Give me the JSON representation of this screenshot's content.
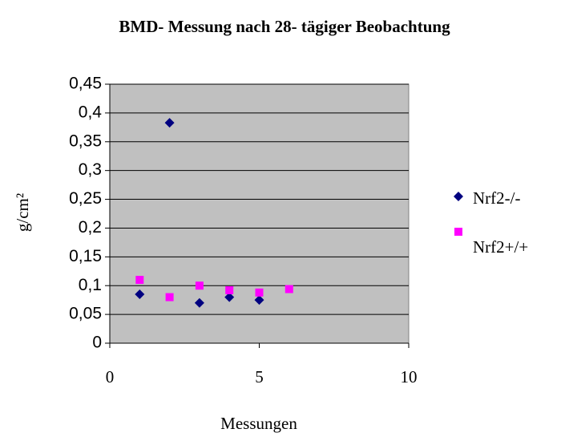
{
  "chart_data": {
    "type": "scatter",
    "title": "BMD- Messung nach 28- tägiger Beobachtung",
    "x_label": "Messungen",
    "y_label": "g/cm²",
    "xlim": [
      0,
      10
    ],
    "xticks": [
      0,
      5,
      10
    ],
    "ylim": [
      0,
      0.45
    ],
    "yticks": [
      0,
      {
        "value": 0.05,
        "label": "0,05"
      },
      {
        "value": 0.1,
        "label": "0,1"
      },
      {
        "value": 0.15,
        "label": "0,15"
      },
      {
        "value": 0.2,
        "label": "0,2"
      },
      {
        "value": 0.25,
        "label": "0,25"
      },
      {
        "value": 0.3,
        "label": "0,3"
      },
      {
        "value": 0.35,
        "label": "0,35"
      },
      {
        "value": 0.4,
        "label": "0,4"
      },
      {
        "value": 0.45,
        "label": "0,45"
      }
    ],
    "grid": true,
    "plot_background": "#c0c0c0",
    "legend": "right",
    "series": [
      {
        "name": "Nrf2-/-",
        "color": "#000080",
        "marker": "diamond",
        "x": [
          1,
          2,
          3,
          4,
          5
        ],
        "values": [
          0.085,
          0.383,
          0.07,
          0.08,
          0.075
        ]
      },
      {
        "name": "Nrf2+/+",
        "color": "#ff00ff",
        "marker": "square",
        "x": [
          1,
          2,
          3,
          4,
          5,
          6
        ],
        "values": [
          0.11,
          0.08,
          0.1,
          0.092,
          0.088,
          0.094
        ]
      }
    ]
  }
}
